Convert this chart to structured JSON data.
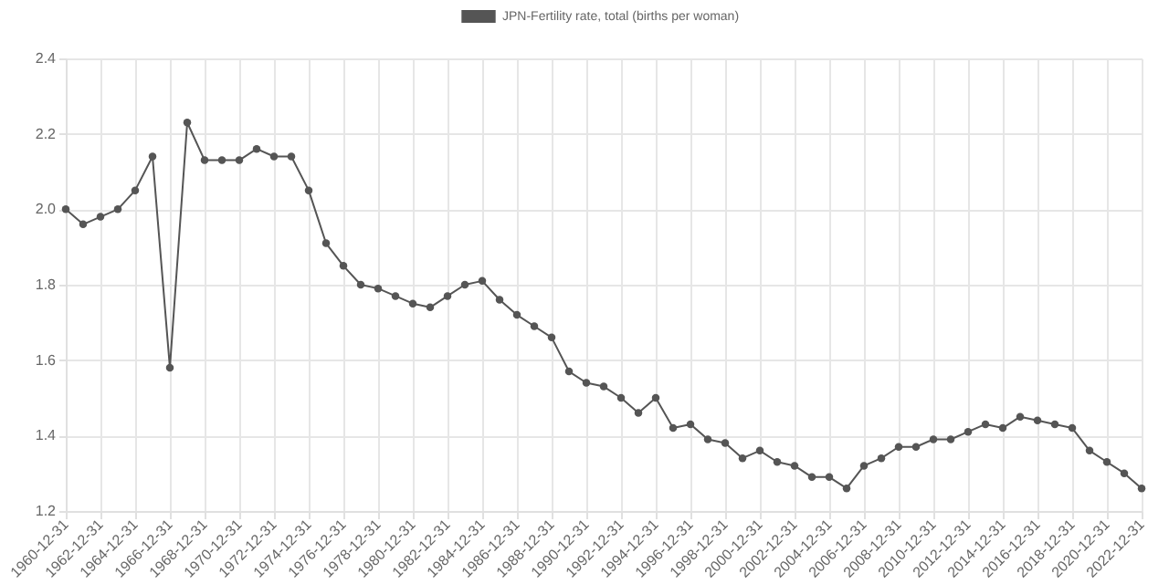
{
  "chart_data": {
    "type": "line",
    "categories": [
      "1960-12-31",
      null,
      "1962-12-31",
      null,
      "1964-12-31",
      null,
      "1966-12-31",
      null,
      "1968-12-31",
      null,
      "1970-12-31",
      null,
      "1972-12-31",
      null,
      "1974-12-31",
      null,
      "1976-12-31",
      null,
      "1978-12-31",
      null,
      "1980-12-31",
      null,
      "1982-12-31",
      null,
      "1984-12-31",
      null,
      "1986-12-31",
      null,
      "1988-12-31",
      null,
      "1990-12-31",
      null,
      "1992-12-31",
      null,
      "1994-12-31",
      null,
      "1996-12-31",
      null,
      "1998-12-31",
      null,
      "2000-12-31",
      null,
      "2002-12-31",
      null,
      "2004-12-31",
      null,
      "2006-12-31",
      null,
      "2008-12-31",
      null,
      "2010-12-31",
      null,
      "2012-12-31",
      null,
      "2014-12-31",
      null,
      "2016-12-31",
      null,
      "2018-12-31",
      null,
      "2020-12-31",
      null,
      "2022-12-31"
    ],
    "series": [
      {
        "name": "JPN-Fertility rate, total (births per woman)",
        "color": "#555555",
        "values": [
          2.0,
          1.96,
          1.98,
          2.0,
          2.05,
          2.14,
          1.58,
          2.23,
          2.13,
          2.13,
          2.13,
          2.16,
          2.14,
          2.14,
          2.05,
          1.91,
          1.85,
          1.8,
          1.79,
          1.77,
          1.75,
          1.74,
          1.77,
          1.8,
          1.81,
          1.76,
          1.72,
          1.69,
          1.66,
          1.57,
          1.54,
          1.53,
          1.5,
          1.46,
          1.5,
          1.42,
          1.43,
          1.39,
          1.38,
          1.34,
          1.36,
          1.33,
          1.32,
          1.29,
          1.29,
          1.26,
          1.32,
          1.34,
          1.37,
          1.37,
          1.39,
          1.39,
          1.41,
          1.43,
          1.42,
          1.45,
          1.44,
          1.43,
          1.42,
          1.36,
          1.33,
          1.3,
          1.26
        ]
      }
    ],
    "ylim": [
      1.2,
      2.4
    ],
    "yticks": [
      1.2,
      1.4,
      1.6,
      1.8,
      {
        "value": 2,
        "label": "2.0"
      },
      2.2,
      2.4
    ],
    "grid": true,
    "legend": "top",
    "marker": "circle",
    "line_style": "solid"
  }
}
